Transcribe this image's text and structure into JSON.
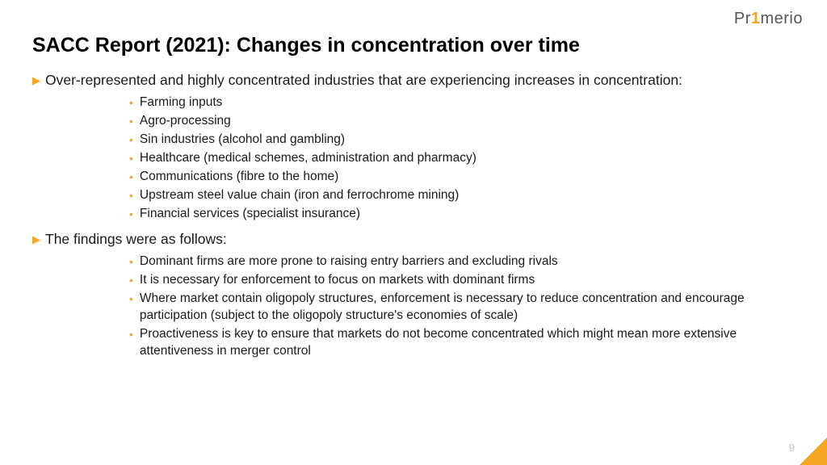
{
  "colors": {
    "accent": "#f5a623",
    "text": "#1a1a1a",
    "muted": "#bfbfbf",
    "background": "#ffffff"
  },
  "logo": {
    "pre": "Pr",
    "accent": "1",
    "post": "merio"
  },
  "title": "SACC Report (2021): Changes in concentration over time",
  "sections": [
    {
      "heading": "Over-represented and highly concentrated industries that are experiencing increases in concentration:",
      "items": [
        "Farming inputs",
        "Agro-processing",
        "Sin industries (alcohol and gambling)",
        "Healthcare (medical schemes, administration and pharmacy)",
        "Communications (fibre to the home)",
        "Upstream steel value chain (iron and ferrochrome mining)",
        "Financial services (specialist insurance)"
      ]
    },
    {
      "heading": "The findings were as follows:",
      "items": [
        "Dominant firms are more prone to raising entry barriers and excluding rivals",
        "It is necessary for enforcement to focus on markets with dominant firms",
        "Where market contain oligopoly structures, enforcement is necessary to reduce concentration and encourage participation (subject to the oligopoly structure's economies of scale)",
        "Proactiveness is key to ensure that markets do not become concentrated which might mean more extensive attentiveness in merger control"
      ]
    }
  ],
  "page_number": "9"
}
